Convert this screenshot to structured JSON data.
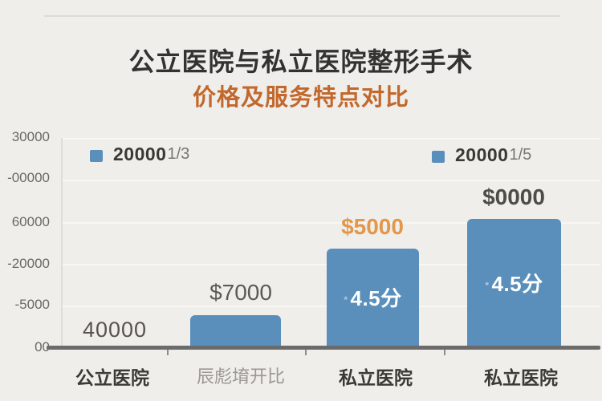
{
  "header": {
    "title_line1": "公立医院与私立医院整形手术",
    "title_line2": "价格及服务特点对比",
    "title_color": "#333230",
    "subtitle_color": "#C2682C"
  },
  "chart_data": {
    "type": "bar",
    "title": "公立医院与私立医院整形手术",
    "subtitle": "价格及服务特点对比",
    "categories": [
      "公立医院",
      "辰彪堉开比",
      "私立医院",
      "私立医院"
    ],
    "y_tick_labels": [
      "30000",
      "-00000",
      "60000",
      "-20000",
      "-5000",
      "00"
    ],
    "bars": [
      {
        "category": "公立医院",
        "has_bar": false,
        "height_frac": 0,
        "value_label": "40000"
      },
      {
        "category": "辰彪堉开比",
        "has_bar": true,
        "height_frac": 0.147,
        "value_label": "$7000"
      },
      {
        "category": "私立医院",
        "has_bar": true,
        "height_frac": 0.467,
        "value_label": "$5000",
        "rating": "4.5分",
        "rating_mark": "*"
      },
      {
        "category": "私立医院",
        "has_bar": true,
        "height_frac": 0.61,
        "value_label": "$0000",
        "rating": "4.5分",
        "rating_mark": "*"
      }
    ],
    "legend": [
      {
        "marker_color": "#5A8FBC",
        "value": "20000",
        "suffix": "1/3"
      },
      {
        "marker_color": "#5A8FBC",
        "value": "20000",
        "suffix": "1/5"
      }
    ],
    "bar_color": "#5A8FBC",
    "axis_color": "#6B6B6B",
    "grid": true,
    "legend_position": "top",
    "value_label_colors": {
      "bar1": "#57534D",
      "bar2": "#5C5A57",
      "bar3": "#E2974B",
      "bar4": "#4E4C49"
    },
    "background_color": "#EFEEEB"
  }
}
